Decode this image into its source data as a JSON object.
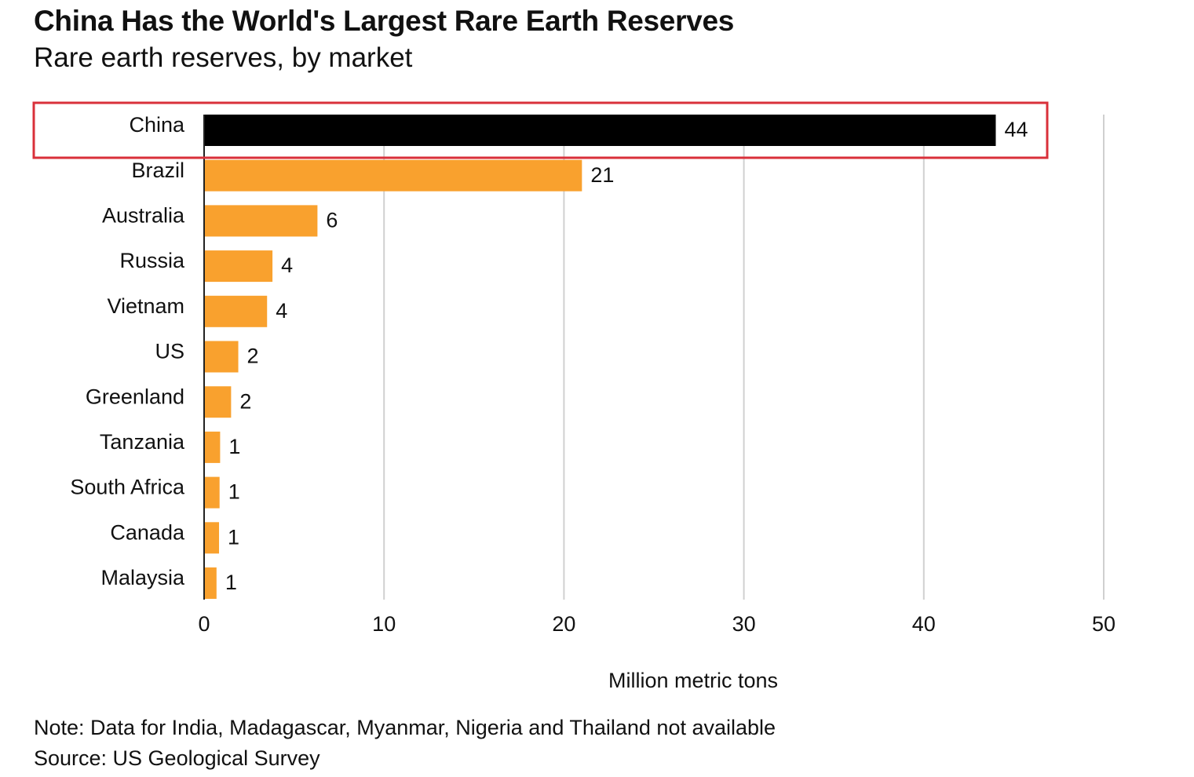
{
  "title": "China Has the World's Largest Rare Earth Reserves",
  "subtitle": "Rare earth reserves, by market",
  "note": "Note: Data for India, Madagascar, Myanmar, Nigeria and Thailand not available",
  "source": "Source: US Geological Survey",
  "colors": {
    "highlight": "#000000",
    "bar": "#f9a12e",
    "grid": "#d0d0d0",
    "highlight_box": "#d9303a"
  },
  "chart_data": {
    "type": "bar",
    "orientation": "horizontal",
    "categories": [
      "China",
      "Brazil",
      "Australia",
      "Russia",
      "Vietnam",
      "US",
      "Greenland",
      "Tanzania",
      "South Africa",
      "Canada",
      "Malaysia"
    ],
    "values": [
      44,
      21,
      6.3,
      3.8,
      3.5,
      1.9,
      1.5,
      0.89,
      0.86,
      0.83,
      0.69
    ],
    "labels": [
      "44",
      "21",
      "6",
      "4",
      "4",
      "2",
      "2",
      "1",
      "1",
      "1",
      "1"
    ],
    "highlighted_category": "China",
    "xlabel": "Million metric tons",
    "xlim": [
      0,
      50
    ],
    "xticks": [
      0,
      10,
      20,
      30,
      40,
      50
    ],
    "grid": true
  }
}
